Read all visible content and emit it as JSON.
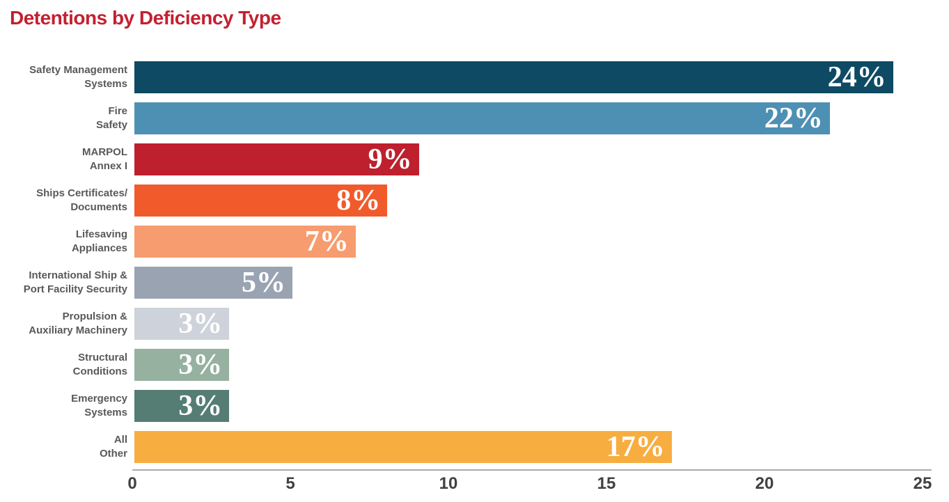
{
  "title": {
    "text": "Detentions by Deficiency Type",
    "color": "#c42030"
  },
  "chart_data": {
    "type": "bar",
    "orientation": "horizontal",
    "title": "Detentions by Deficiency Type",
    "xlabel": "",
    "ylabel": "",
    "xlim": [
      0,
      25
    ],
    "x_ticks": [
      0,
      5,
      10,
      15,
      20,
      25
    ],
    "grid": false,
    "value_unit": "percent",
    "categories": [
      "Safety Management Systems",
      "Fire Safety",
      "MARPOL Annex I",
      "Ships Certificates/Documents",
      "Lifesaving Appliances",
      "International Ship & Port Facility Security",
      "Propulsion & Auxiliary Machinery",
      "Structural Conditions",
      "Emergency Systems",
      "All Other"
    ],
    "values": [
      24,
      22,
      9,
      8,
      7,
      5,
      3,
      3,
      3,
      17
    ],
    "rows": [
      {
        "label_lines": [
          "Safety Management",
          "Systems"
        ],
        "value": 24,
        "data_label": "24%",
        "color": "#0e4a64"
      },
      {
        "label_lines": [
          "Fire",
          "Safety"
        ],
        "value": 22,
        "data_label": "22%",
        "color": "#4e90b4"
      },
      {
        "label_lines": [
          "MARPOL",
          "Annex I"
        ],
        "value": 9,
        "data_label": "9%",
        "color": "#be202e"
      },
      {
        "label_lines": [
          "Ships Certificates/",
          "Documents"
        ],
        "value": 8,
        "data_label": "8%",
        "color": "#f15b2b"
      },
      {
        "label_lines": [
          "Lifesaving",
          "Appliances"
        ],
        "value": 7,
        "data_label": "7%",
        "color": "#f79c6e"
      },
      {
        "label_lines": [
          "International Ship &",
          "Port Facility Security"
        ],
        "value": 5,
        "data_label": "5%",
        "color": "#9aa3b2"
      },
      {
        "label_lines": [
          "Propulsion &",
          "Auxiliary Machinery"
        ],
        "value": 3,
        "data_label": "3%",
        "color": "#ced2da"
      },
      {
        "label_lines": [
          "Structural",
          "Conditions"
        ],
        "value": 3,
        "data_label": "3%",
        "color": "#96b19f"
      },
      {
        "label_lines": [
          "Emergency",
          "Systems"
        ],
        "value": 3,
        "data_label": "3%",
        "color": "#557d74"
      },
      {
        "label_lines": [
          "All",
          "Other"
        ],
        "value": 17,
        "data_label": "17%",
        "color": "#f8ad41"
      }
    ],
    "colors": {
      "label_text": "#58595b",
      "tick_text": "#414042",
      "axis_line": "#a8aaad",
      "bar_value_text": "#ffffff"
    },
    "legend": null
  }
}
